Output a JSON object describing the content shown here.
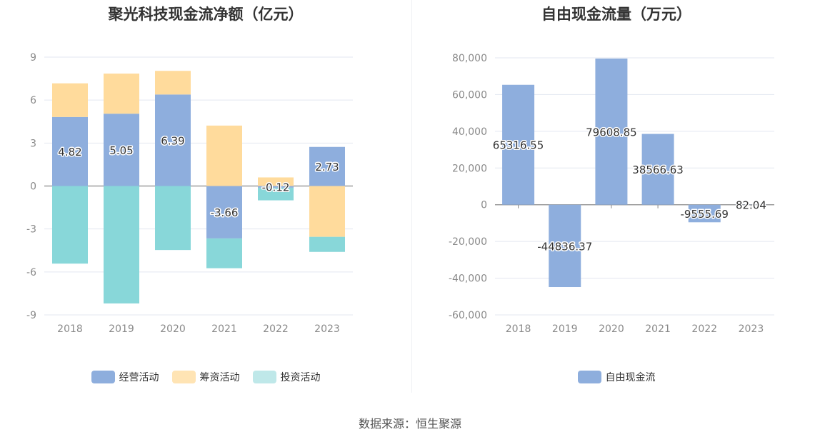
{
  "chart_data": [
    {
      "type": "bar",
      "stacked": true,
      "title": "聚光科技现金流净额（亿元）",
      "categories": [
        "2018",
        "2019",
        "2020",
        "2021",
        "2022",
        "2023"
      ],
      "ylim": [
        -9,
        9
      ],
      "yticks": [
        "9",
        "6",
        "3",
        "0",
        "-3",
        "-6",
        "-9"
      ],
      "ytick_values": [
        9,
        6,
        3,
        0,
        -3,
        -6,
        -9
      ],
      "grid": true,
      "legend_position": "bottom",
      "series": [
        {
          "name": "经营活动",
          "color": "#8eaedd",
          "values": [
            4.82,
            5.05,
            6.39,
            -3.66,
            -0.12,
            2.73
          ]
        },
        {
          "name": "筹资活动",
          "color": "#ffdb9c",
          "values": [
            2.35,
            2.8,
            1.65,
            4.22,
            0.6,
            -3.55
          ]
        },
        {
          "name": "投资活动",
          "color": "#88d7d9",
          "values": [
            -5.42,
            -8.2,
            -4.47,
            -2.08,
            -0.88,
            -1.05
          ]
        }
      ],
      "data_labels": [
        "4.82",
        "5.05",
        "6.39",
        "-3.66",
        "-0.12",
        "2.73"
      ]
    },
    {
      "type": "bar",
      "title": "自由现金流量（万元）",
      "categories": [
        "2018",
        "2019",
        "2020",
        "2021",
        "2022",
        "2023"
      ],
      "ylim": [
        -60000,
        80000
      ],
      "yticks": [
        "80,000",
        "60,000",
        "40,000",
        "20,000",
        "0",
        "-20,000",
        "-40,000",
        "-60,000"
      ],
      "ytick_values": [
        80000,
        60000,
        40000,
        20000,
        0,
        -20000,
        -40000,
        -60000
      ],
      "grid": true,
      "legend_position": "bottom",
      "series": [
        {
          "name": "自由现金流",
          "color": "#8eaedd",
          "values": [
            65316.55,
            -44836.37,
            79608.85,
            38566.63,
            -9555.69,
            82.04
          ]
        }
      ],
      "data_labels": [
        "65316.55",
        "-44836.37",
        "79608.85",
        "38566.63",
        "-9555.69",
        "82.04"
      ]
    }
  ],
  "footer": {
    "source": "数据来源：恒生聚源"
  }
}
